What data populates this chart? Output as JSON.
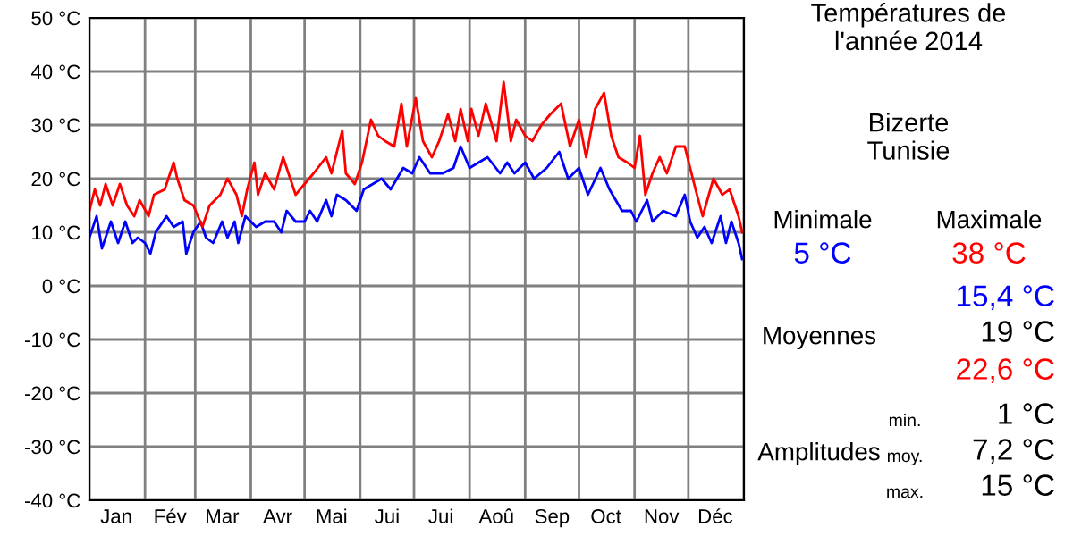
{
  "chart_data": {
    "type": "line",
    "title": "Températures de\nl'année 2014",
    "subtitle": "Bizerte\nTunisie",
    "annotations": [
      "Minimale",
      "Maximale",
      "5 °C",
      "38 °C",
      "15,4 °C",
      "Moyennes",
      "19 °C",
      "22,6 °C",
      "Amplitudes",
      "min.",
      "1 °C",
      "moy.",
      "7,2 °C",
      "max.",
      "15 °C"
    ],
    "series": [
      {
        "color": "#0000ff",
        "x": [
          "2014-01-01",
          "2014-01-05",
          "2014-01-08",
          "2014-01-13",
          "2014-01-17",
          "2014-01-21",
          "2014-01-25",
          "2014-01-28",
          "2014-02-01",
          "2014-02-04",
          "2014-02-07",
          "2014-02-13",
          "2014-02-17",
          "2014-02-22",
          "2014-02-24",
          "2014-02-28",
          "2014-03-04",
          "2014-03-07",
          "2014-03-11",
          "2014-03-16",
          "2014-03-19",
          "2014-03-23",
          "2014-03-25",
          "2014-03-29",
          "2014-04-04",
          "2014-04-09",
          "2014-04-14",
          "2014-04-18",
          "2014-04-21",
          "2014-04-26",
          "2014-05-01",
          "2014-05-04",
          "2014-05-08",
          "2014-05-13",
          "2014-05-16",
          "2014-05-19",
          "2014-05-24",
          "2014-05-30",
          "2014-06-03",
          "2014-06-08",
          "2014-06-13",
          "2014-06-18",
          "2014-06-25",
          "2014-06-30",
          "2014-07-04",
          "2014-07-10",
          "2014-07-17",
          "2014-07-23",
          "2014-07-27",
          "2014-08-01",
          "2014-08-06",
          "2014-08-11",
          "2014-08-18",
          "2014-08-22",
          "2014-08-26",
          "2014-09-01",
          "2014-09-06",
          "2014-09-13",
          "2014-09-20",
          "2014-09-25",
          "2014-10-01",
          "2014-10-06",
          "2014-10-13",
          "2014-10-18",
          "2014-10-25",
          "2014-10-30",
          "2014-11-02",
          "2014-11-08",
          "2014-11-11",
          "2014-11-17",
          "2014-11-24",
          "2014-11-29",
          "2014-12-02",
          "2014-12-06",
          "2014-12-10",
          "2014-12-14",
          "2014-12-19",
          "2014-12-22",
          "2014-12-25",
          "2014-12-29",
          "2014-12-31"
        ],
        "values": [
          9,
          13,
          7,
          12,
          8,
          12,
          8,
          9,
          8,
          6,
          10,
          13,
          11,
          12,
          6,
          10,
          12,
          9,
          8,
          12,
          9,
          12,
          8,
          13,
          11,
          12,
          12,
          10,
          14,
          12,
          12,
          14,
          12,
          16,
          13,
          17,
          16,
          14,
          18,
          19,
          20,
          18,
          22,
          21,
          24,
          21,
          21,
          22,
          26,
          22,
          23,
          24,
          21,
          23,
          21,
          23,
          20,
          22,
          25,
          20,
          22,
          17,
          22,
          18,
          14,
          14,
          12,
          16,
          12,
          14,
          13,
          17,
          12,
          9,
          11,
          8,
          13,
          8,
          12,
          8,
          5
        ]
      },
      {
        "color": "#ff0000",
        "x": [
          "2014-01-01",
          "2014-01-04",
          "2014-01-07",
          "2014-01-10",
          "2014-01-14",
          "2014-01-18",
          "2014-01-22",
          "2014-01-26",
          "2014-01-29",
          "2014-02-03",
          "2014-02-06",
          "2014-02-12",
          "2014-02-17",
          "2014-02-19",
          "2014-02-23",
          "2014-02-28",
          "2014-03-05",
          "2014-03-09",
          "2014-03-15",
          "2014-03-19",
          "2014-03-24",
          "2014-03-27",
          "2014-03-30",
          "2014-04-03",
          "2014-04-05",
          "2014-04-09",
          "2014-04-14",
          "2014-04-19",
          "2014-04-23",
          "2014-04-26",
          "2014-05-01",
          "2014-05-06",
          "2014-05-13",
          "2014-05-16",
          "2014-05-22",
          "2014-05-24",
          "2014-05-29",
          "2014-06-02",
          "2014-06-07",
          "2014-06-11",
          "2014-06-15",
          "2014-06-20",
          "2014-06-24",
          "2014-06-27",
          "2014-07-02",
          "2014-07-06",
          "2014-07-11",
          "2014-07-15",
          "2014-07-20",
          "2014-07-24",
          "2014-07-27",
          "2014-07-31",
          "2014-08-02",
          "2014-08-06",
          "2014-08-10",
          "2014-08-16",
          "2014-08-20",
          "2014-08-24",
          "2014-08-27",
          "2014-09-01",
          "2014-09-05",
          "2014-09-10",
          "2014-09-15",
          "2014-09-21",
          "2014-09-26",
          "2014-10-01",
          "2014-10-05",
          "2014-10-10",
          "2014-10-15",
          "2014-10-19",
          "2014-10-23",
          "2014-10-28",
          "2014-11-01",
          "2014-11-04",
          "2014-11-07",
          "2014-11-11",
          "2014-11-15",
          "2014-11-19",
          "2014-11-24",
          "2014-11-29",
          "2014-12-02",
          "2014-12-05",
          "2014-12-09",
          "2014-12-15",
          "2014-12-20",
          "2014-12-24",
          "2014-12-29",
          "2014-12-31"
        ],
        "values": [
          14,
          18,
          15,
          19,
          15,
          19,
          15,
          13,
          16,
          13,
          17,
          18,
          23,
          20,
          16,
          15,
          11,
          15,
          17,
          20,
          17,
          13,
          18,
          23,
          17,
          21,
          18,
          24,
          20,
          17,
          19,
          21,
          24,
          21,
          29,
          21,
          19,
          23,
          31,
          28,
          27,
          26,
          34,
          26,
          35,
          27,
          24,
          27,
          32,
          27,
          33,
          27,
          33,
          28,
          34,
          27,
          38,
          27,
          31,
          28,
          27,
          30,
          32,
          34,
          26,
          31,
          24,
          33,
          36,
          28,
          24,
          23,
          22,
          28,
          17,
          21,
          24,
          21,
          26,
          26,
          22,
          18,
          13,
          20,
          17,
          18,
          13,
          10
        ]
      }
    ],
    "xlim": [
      "2014-01-01",
      "2015-01-01"
    ],
    "xticks": [
      {
        "value": "2014-01-01",
        "label": null
      },
      {
        "value": "2014-01-16",
        "label": "Jan"
      },
      {
        "value": "2014-02-01",
        "label": null
      },
      {
        "value": "2014-02-15",
        "label": "Fév"
      },
      {
        "value": "2014-03-01",
        "label": null
      },
      {
        "value": "2014-03-16",
        "label": "Mar"
      },
      {
        "value": "2014-04-01",
        "label": null
      },
      {
        "value": "2014-04-16",
        "label": "Avr"
      },
      {
        "value": "2014-05-01",
        "label": null
      },
      {
        "value": "2014-05-16",
        "label": "Mai"
      },
      {
        "value": "2014-06-01",
        "label": null
      },
      {
        "value": "2014-06-16",
        "label": "Jui"
      },
      {
        "value": "2014-07-01",
        "label": null
      },
      {
        "value": "2014-07-16",
        "label": "Jui"
      },
      {
        "value": "2014-08-01",
        "label": null
      },
      {
        "value": "2014-08-16",
        "label": "Aoû"
      },
      {
        "value": "2014-09-01",
        "label": null
      },
      {
        "value": "2014-09-16",
        "label": "Sep"
      },
      {
        "value": "2014-10-01",
        "label": null
      },
      {
        "value": "2014-10-16",
        "label": "Oct"
      },
      {
        "value": "2014-11-01",
        "label": null
      },
      {
        "value": "2014-11-16",
        "label": "Nov"
      },
      {
        "value": "2014-12-01",
        "label": null
      },
      {
        "value": "2014-12-16",
        "label": "Déc"
      },
      {
        "value": "2015-01-01",
        "label": null
      }
    ],
    "ylim": [
      -40,
      50
    ],
    "yticks": [
      {
        "value": -40,
        "label": "-40 °C"
      },
      {
        "value": -30,
        "label": "-30 °C"
      },
      {
        "value": -20,
        "label": "-20 °C"
      },
      {
        "value": -10,
        "label": "-10 °C"
      },
      {
        "value": 0,
        "label": "0 °C"
      },
      {
        "value": 10,
        "label": "10 °C"
      },
      {
        "value": 20,
        "label": "20 °C"
      },
      {
        "value": 30,
        "label": "30 °C"
      },
      {
        "value": 40,
        "label": "40 °C"
      },
      {
        "value": 50,
        "label": "50 °C"
      }
    ],
    "grid": true
  }
}
